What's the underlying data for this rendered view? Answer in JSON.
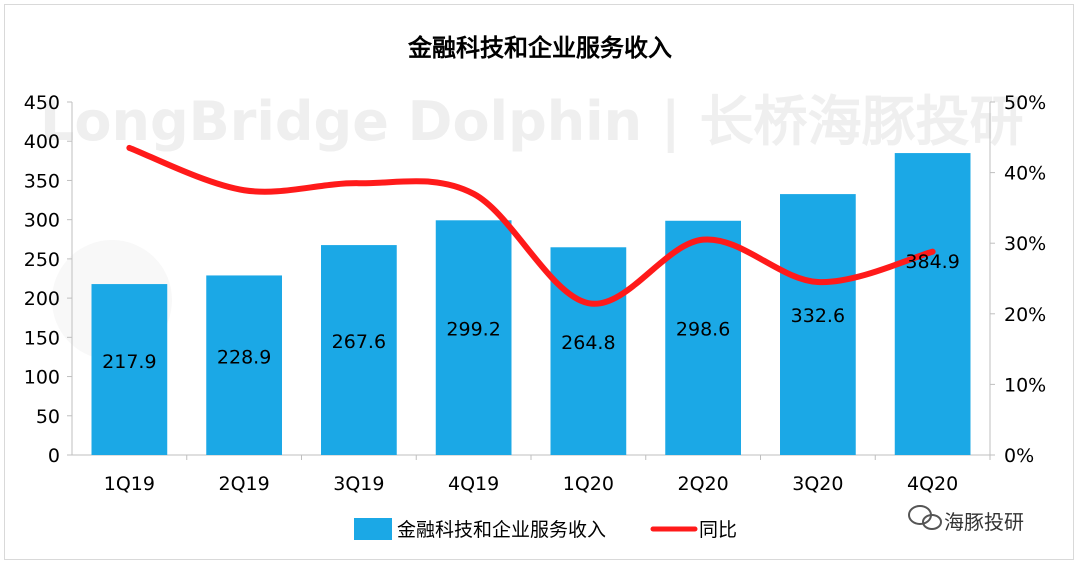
{
  "chart_data": {
    "type": "bar+line",
    "title": "金融科技和企业服务收入",
    "categories": [
      "1Q19",
      "2Q19",
      "3Q19",
      "4Q19",
      "1Q20",
      "2Q20",
      "3Q20",
      "4Q20"
    ],
    "series": [
      {
        "name": "金融科技和企业服务收入",
        "kind": "bar",
        "axis": "left",
        "color": "#1ba8e6",
        "values": [
          217.9,
          228.9,
          267.6,
          299.2,
          264.8,
          298.6,
          332.6,
          384.9
        ]
      },
      {
        "name": "同比",
        "kind": "line",
        "axis": "right",
        "color": "#ff1a1a",
        "values": [
          0.435,
          0.375,
          0.385,
          0.37,
          0.215,
          0.305,
          0.245,
          0.288
        ]
      }
    ],
    "y_left": {
      "min": 0,
      "max": 450,
      "ticks": [
        "0",
        "50",
        "100",
        "150",
        "200",
        "250",
        "300",
        "350",
        "400",
        "450"
      ]
    },
    "y_right": {
      "min": 0,
      "max": 0.5,
      "ticks": [
        "0%",
        "10%",
        "20%",
        "30%",
        "40%",
        "50%"
      ]
    },
    "grid": false,
    "legend_position": "bottom"
  },
  "watermark": "LongBridge Dolphin | 长桥海豚投研",
  "brand": {
    "label": "海豚投研"
  }
}
